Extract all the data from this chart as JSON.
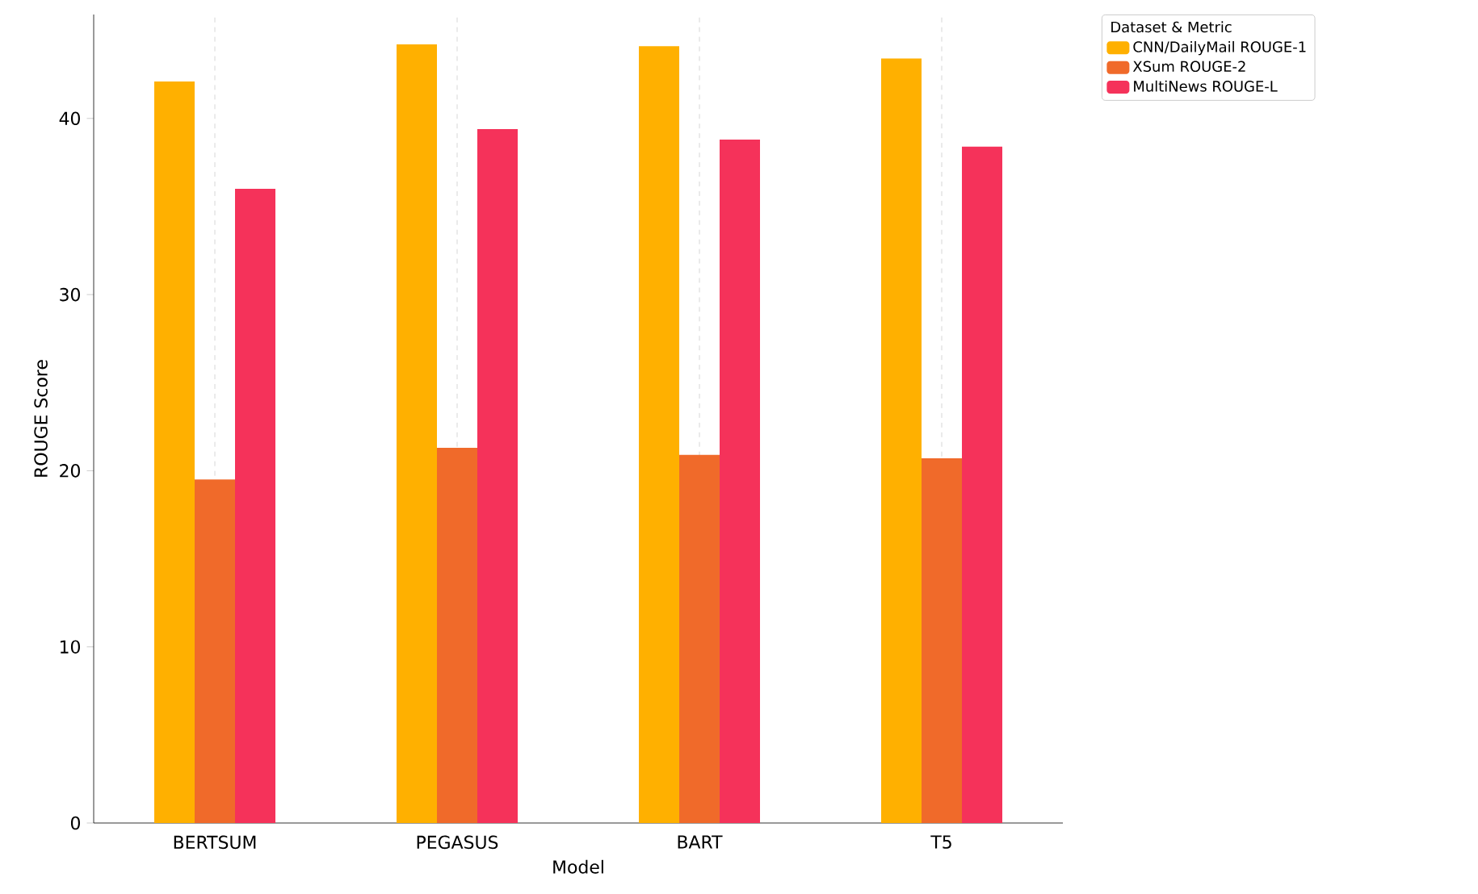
{
  "chart_data": {
    "type": "bar",
    "xlabel": "Model",
    "ylabel": "ROUGE Score",
    "legend_title": "Dataset & Metric",
    "categories": [
      "BERTSUM",
      "PEGASUS",
      "BART",
      "T5"
    ],
    "series": [
      {
        "name": "CNN/DailyMail ROUGE-1",
        "color": "#ffb000",
        "values": [
          42.1,
          44.2,
          44.1,
          43.4
        ]
      },
      {
        "name": "XSum ROUGE-2",
        "color": "#f06a2a",
        "values": [
          19.5,
          21.3,
          20.9,
          20.7
        ]
      },
      {
        "name": "MultiNews ROUGE-L",
        "color": "#f5325a",
        "values": [
          36.0,
          39.4,
          38.8,
          38.4
        ]
      }
    ],
    "ylim": [
      0,
      45.9
    ],
    "yticks": [
      0,
      10,
      20,
      30,
      40
    ],
    "grid": "x",
    "legend": "top right"
  }
}
